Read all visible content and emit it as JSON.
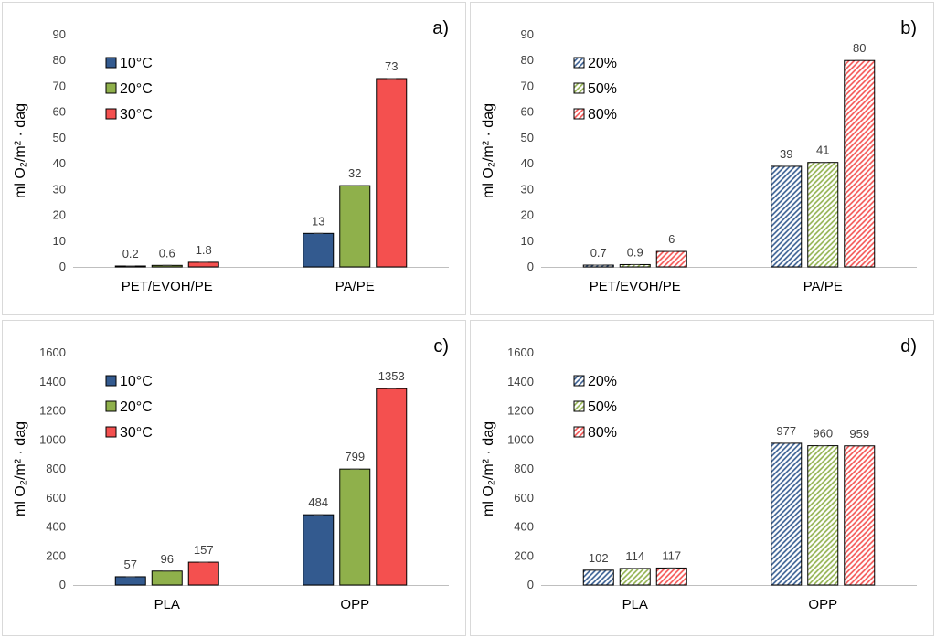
{
  "chart_data": [
    {
      "type": "bar",
      "panel_label": "a)",
      "ylabel": "ml O₂/m² · dag",
      "ylim": [
        0,
        90
      ],
      "yticks": [
        0,
        10,
        20,
        30,
        40,
        50,
        60,
        70,
        80,
        90
      ],
      "categories": [
        "PET/EVOH/PE",
        "PA/PE"
      ],
      "legend_position": "top-left",
      "series": [
        {
          "name": "10°C",
          "color": "#335A8F",
          "pattern": "solid",
          "values": [
            0.2,
            13
          ],
          "labels": [
            "0.2",
            "13"
          ]
        },
        {
          "name": "20°C",
          "color": "#8FB04B",
          "pattern": "solid",
          "values": [
            0.6,
            31.5
          ],
          "labels": [
            "0.6",
            "32"
          ]
        },
        {
          "name": "30°C",
          "color": "#F4504F",
          "pattern": "solid",
          "values": [
            1.8,
            73
          ],
          "labels": [
            "1.8",
            "73"
          ]
        }
      ]
    },
    {
      "type": "bar",
      "panel_label": "b)",
      "ylabel": "ml O₂/m² · dag",
      "ylim": [
        0,
        90
      ],
      "yticks": [
        0,
        10,
        20,
        30,
        40,
        50,
        60,
        70,
        80,
        90
      ],
      "categories": [
        "PET/EVOH/PE",
        "PA/PE"
      ],
      "legend_position": "top-left",
      "series": [
        {
          "name": "20%",
          "color": "#335A8F",
          "pattern": "hatch",
          "values": [
            0.7,
            39
          ],
          "labels": [
            "0.7",
            "39"
          ]
        },
        {
          "name": "50%",
          "color": "#8FB04B",
          "pattern": "hatch",
          "values": [
            0.9,
            40.5
          ],
          "labels": [
            "0.9",
            "41"
          ]
        },
        {
          "name": "80%",
          "color": "#F4504F",
          "pattern": "hatch",
          "values": [
            6,
            80
          ],
          "labels": [
            "6",
            "80"
          ]
        }
      ]
    },
    {
      "type": "bar",
      "panel_label": "c)",
      "ylabel": "ml O₂/m² · dag",
      "ylim": [
        0,
        1600
      ],
      "yticks": [
        0,
        200,
        400,
        600,
        800,
        1000,
        1200,
        1400,
        1600
      ],
      "categories": [
        "PLA",
        "OPP"
      ],
      "legend_position": "top-left",
      "series": [
        {
          "name": "10°C",
          "color": "#335A8F",
          "pattern": "solid",
          "values": [
            57,
            484
          ],
          "labels": [
            "57",
            "484"
          ]
        },
        {
          "name": "20°C",
          "color": "#8FB04B",
          "pattern": "solid",
          "values": [
            96,
            799
          ],
          "labels": [
            "96",
            "799"
          ]
        },
        {
          "name": "30°C",
          "color": "#F4504F",
          "pattern": "solid",
          "values": [
            157,
            1353
          ],
          "labels": [
            "157",
            "1353"
          ]
        }
      ]
    },
    {
      "type": "bar",
      "panel_label": "d)",
      "ylabel": "ml O₂/m² · dag",
      "ylim": [
        0,
        1600
      ],
      "yticks": [
        0,
        200,
        400,
        600,
        800,
        1000,
        1200,
        1400,
        1600
      ],
      "categories": [
        "PLA",
        "OPP"
      ],
      "legend_position": "top-left",
      "series": [
        {
          "name": "20%",
          "color": "#335A8F",
          "pattern": "hatch",
          "values": [
            102,
            977
          ],
          "labels": [
            "102",
            "977"
          ]
        },
        {
          "name": "50%",
          "color": "#8FB04B",
          "pattern": "hatch",
          "values": [
            114,
            960
          ],
          "labels": [
            "114",
            "960"
          ]
        },
        {
          "name": "80%",
          "color": "#F4504F",
          "pattern": "hatch",
          "values": [
            117,
            959
          ],
          "labels": [
            "117",
            "959"
          ]
        }
      ]
    }
  ]
}
